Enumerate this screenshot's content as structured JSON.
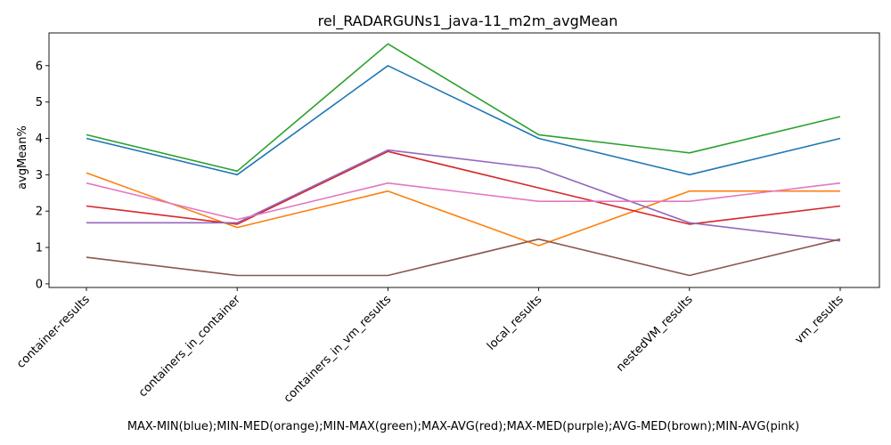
{
  "chart_data": {
    "type": "line",
    "title": "rel_RADARGUNs1_java-11_m2m_avgMean",
    "xlabel": "MAX-MIN(blue);MIN-MED(orange);MIN-MAX(green);MAX-AVG(red);MAX-MED(purple);AVG-MED(brown);MIN-AVG(pink)",
    "ylabel": "avgMean%",
    "categories": [
      "container-results",
      "containers_in_container",
      "containers_in_vm_results",
      "local_results",
      "nestedVM_results",
      "vm_results"
    ],
    "ylim": [
      -0.1,
      6.9
    ],
    "yticks": [
      0,
      1,
      2,
      3,
      4,
      5,
      6
    ],
    "grid": false,
    "series": [
      {
        "color": "#1f77b4",
        "values": [
          4.0,
          3.0,
          6.0,
          4.0,
          3.0,
          4.0
        ]
      },
      {
        "color": "#ff7f0e",
        "values": [
          3.05,
          1.55,
          2.55,
          1.05,
          2.55,
          2.55
        ]
      },
      {
        "color": "#2ca02c",
        "values": [
          4.1,
          3.1,
          6.6,
          4.1,
          3.6,
          4.6
        ]
      },
      {
        "color": "#d62728",
        "values": [
          2.14,
          1.64,
          3.64,
          2.64,
          1.64,
          2.14
        ]
      },
      {
        "color": "#9467bd",
        "values": [
          1.68,
          1.68,
          3.68,
          3.18,
          1.68,
          1.18
        ]
      },
      {
        "color": "#8c564b",
        "values": [
          0.73,
          0.23,
          0.23,
          1.23,
          0.23,
          1.23
        ]
      },
      {
        "color": "#e377c2",
        "values": [
          2.77,
          1.77,
          2.77,
          2.27,
          2.27,
          2.77
        ]
      }
    ]
  }
}
